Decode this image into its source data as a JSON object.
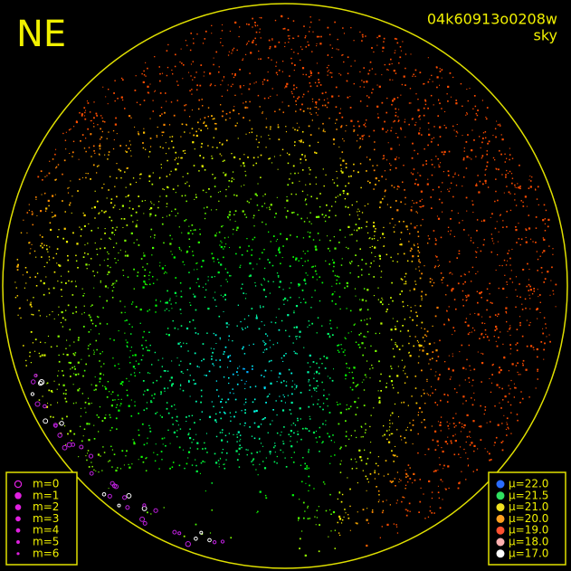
{
  "header": {
    "label": "NE",
    "frame_id": "04k60913o0208w",
    "filter": "sky"
  },
  "magnitude_legend": {
    "color": "#e020e0",
    "items": [
      "m=0",
      "m=1",
      "m=2",
      "m=3",
      "m=4",
      "m=5",
      "m=6"
    ]
  },
  "brightness_legend": {
    "items": [
      {
        "label": "μ=22.0",
        "color": "#2a6cff"
      },
      {
        "label": "μ=21.5",
        "color": "#30e060"
      },
      {
        "label": "μ=21.0",
        "color": "#f0e020"
      },
      {
        "label": "μ=20.0",
        "color": "#ffa020"
      },
      {
        "label": "μ=19.0",
        "color": "#ff5030"
      },
      {
        "label": "μ=18.0",
        "color": "#ffb0b0"
      },
      {
        "label": "μ=17.0",
        "color": "#ffffff"
      }
    ]
  }
}
